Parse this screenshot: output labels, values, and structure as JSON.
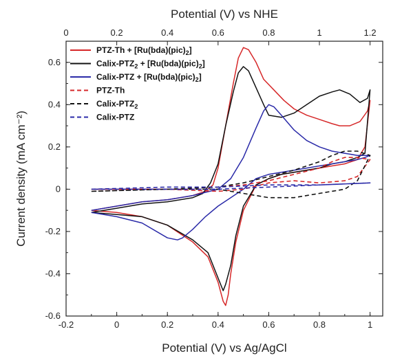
{
  "chart_data": {
    "type": "line",
    "title": "",
    "xlabel": "Potential (V) vs Ag/AgCl",
    "ylabel": "Current density (mA cm⁻²)",
    "x2label": "Potential (V) vs NHE",
    "xlim": [
      -0.2,
      1.05
    ],
    "ylim": [
      -0.6,
      0.7
    ],
    "x2lim": [
      0,
      1.25
    ],
    "xticks": [
      "-0.2",
      "0",
      "0.2",
      "0.4",
      "0.6",
      "0.8",
      "1"
    ],
    "x2ticks": [
      "0",
      "0.2",
      "0.4",
      "0.6",
      "0.8",
      "1",
      "1.2"
    ],
    "yticks": [
      "-0.6",
      "-0.4",
      "-0.2",
      "0",
      "0.2",
      "0.4",
      "0.6"
    ],
    "grid": false,
    "legend_position": "top-left",
    "series": [
      {
        "name": "PTZ-Th + [Ru(bda)(pic)2]",
        "legend": {
          "base": "PTZ-Th + [Ru(bda)(pic)",
          "sub": "2",
          "tail": "]"
        },
        "color": "#d62728",
        "dash": "solid",
        "x": [
          -0.1,
          0.0,
          0.1,
          0.2,
          0.3,
          0.35,
          0.38,
          0.4,
          0.43,
          0.46,
          0.48,
          0.5,
          0.52,
          0.55,
          0.58,
          0.62,
          0.66,
          0.7,
          0.75,
          0.8,
          0.85,
          0.88,
          0.92,
          0.96,
          0.99,
          1.0,
          0.98,
          0.95,
          0.9,
          0.85,
          0.8,
          0.75,
          0.7,
          0.65,
          0.6,
          0.55,
          0.5,
          0.47,
          0.45,
          0.44,
          0.43,
          0.42,
          0.4,
          0.36,
          0.3,
          0.2,
          0.1,
          0.0,
          -0.1
        ],
        "y": [
          -0.1,
          -0.08,
          -0.06,
          -0.05,
          -0.03,
          -0.01,
          0.02,
          0.1,
          0.3,
          0.5,
          0.62,
          0.67,
          0.66,
          0.6,
          0.52,
          0.47,
          0.42,
          0.38,
          0.35,
          0.33,
          0.31,
          0.3,
          0.3,
          0.32,
          0.37,
          0.42,
          0.2,
          0.14,
          0.12,
          0.11,
          0.1,
          0.09,
          0.08,
          0.07,
          0.05,
          0.02,
          -0.1,
          -0.25,
          -0.4,
          -0.5,
          -0.55,
          -0.53,
          -0.44,
          -0.32,
          -0.25,
          -0.17,
          -0.13,
          -0.11,
          -0.1
        ]
      },
      {
        "name": "Calix-PTZ2 + [Ru(bda)(pic)2]",
        "legend": {
          "base": "Calix-PTZ",
          "sub": "2",
          "mid": " + [Ru(bda)(pic)",
          "sub2": "2",
          "tail": "]"
        },
        "color": "#111111",
        "dash": "solid",
        "x": [
          -0.1,
          0.0,
          0.1,
          0.2,
          0.3,
          0.34,
          0.37,
          0.4,
          0.43,
          0.46,
          0.48,
          0.5,
          0.52,
          0.55,
          0.58,
          0.6,
          0.65,
          0.7,
          0.75,
          0.8,
          0.85,
          0.88,
          0.92,
          0.96,
          0.99,
          1.0,
          0.98,
          0.95,
          0.9,
          0.85,
          0.8,
          0.75,
          0.7,
          0.65,
          0.6,
          0.55,
          0.5,
          0.47,
          0.45,
          0.43,
          0.42,
          0.4,
          0.36,
          0.3,
          0.2,
          0.1,
          0.0,
          -0.1
        ],
        "y": [
          -0.11,
          -0.09,
          -0.07,
          -0.06,
          -0.04,
          -0.02,
          0.03,
          0.12,
          0.3,
          0.46,
          0.55,
          0.58,
          0.56,
          0.48,
          0.4,
          0.35,
          0.34,
          0.36,
          0.4,
          0.44,
          0.46,
          0.47,
          0.45,
          0.41,
          0.43,
          0.47,
          0.17,
          0.15,
          0.13,
          0.12,
          0.1,
          0.09,
          0.08,
          0.07,
          0.05,
          0.02,
          -0.08,
          -0.22,
          -0.36,
          -0.45,
          -0.48,
          -0.42,
          -0.3,
          -0.24,
          -0.17,
          -0.13,
          -0.12,
          -0.11
        ]
      },
      {
        "name": "Calix-PTZ + [Ru(bda)(pic)2]",
        "legend": {
          "base": "Calix-PTZ + [Ru(bda)(pic)",
          "sub": "2",
          "tail": "]"
        },
        "color": "#2a2aa8",
        "dash": "solid",
        "x": [
          -0.1,
          0.0,
          0.1,
          0.2,
          0.3,
          0.4,
          0.45,
          0.5,
          0.55,
          0.58,
          0.6,
          0.62,
          0.65,
          0.7,
          0.75,
          0.8,
          0.85,
          0.9,
          0.95,
          1.0,
          0.98,
          0.95,
          0.9,
          0.85,
          0.8,
          0.75,
          0.7,
          0.65,
          0.6,
          0.55,
          0.5,
          0.45,
          0.4,
          0.35,
          0.3,
          0.26,
          0.24,
          0.2,
          0.1,
          0.0,
          -0.1
        ],
        "y": [
          -0.1,
          -0.08,
          -0.06,
          -0.05,
          -0.03,
          0.0,
          0.05,
          0.15,
          0.29,
          0.37,
          0.4,
          0.39,
          0.35,
          0.28,
          0.23,
          0.2,
          0.18,
          0.17,
          0.16,
          0.16,
          0.15,
          0.14,
          0.13,
          0.12,
          0.11,
          0.1,
          0.09,
          0.08,
          0.07,
          0.05,
          0.0,
          -0.04,
          -0.08,
          -0.13,
          -0.19,
          -0.23,
          -0.24,
          -0.23,
          -0.16,
          -0.13,
          -0.11
        ]
      },
      {
        "name": "PTZ-Th",
        "legend": {
          "base": "PTZ-Th"
        },
        "color": "#d62728",
        "dash": "dashed",
        "x": [
          -0.1,
          0.2,
          0.4,
          0.5,
          0.6,
          0.7,
          0.8,
          0.85,
          0.9,
          0.95,
          1.0,
          0.95,
          0.9,
          0.8,
          0.7,
          0.6,
          0.5,
          0.4,
          0.2,
          -0.1
        ],
        "y": [
          0.0,
          0.0,
          0.01,
          0.02,
          0.04,
          0.07,
          0.1,
          0.13,
          0.15,
          0.15,
          0.14,
          0.06,
          0.04,
          0.03,
          0.04,
          0.03,
          0.0,
          -0.01,
          0.0,
          0.0
        ]
      },
      {
        "name": "Calix-PTZ2",
        "legend": {
          "base": "Calix-PTZ",
          "sub": "2"
        },
        "color": "#111111",
        "dash": "dashed",
        "x": [
          -0.1,
          0.2,
          0.4,
          0.5,
          0.6,
          0.7,
          0.8,
          0.85,
          0.9,
          0.95,
          1.0,
          0.95,
          0.9,
          0.8,
          0.7,
          0.6,
          0.5,
          0.4,
          0.2,
          -0.1
        ],
        "y": [
          -0.01,
          0.0,
          0.01,
          0.03,
          0.06,
          0.09,
          0.13,
          0.16,
          0.18,
          0.18,
          0.16,
          0.04,
          0.0,
          -0.02,
          -0.04,
          -0.04,
          -0.02,
          0.0,
          0.0,
          -0.01
        ]
      },
      {
        "name": "Calix-PTZ",
        "legend": {
          "base": "Calix-PTZ"
        },
        "color": "#2a2aa8",
        "dash": "dashed",
        "x": [
          -0.1,
          0.2,
          0.4,
          0.6,
          0.8,
          1.0,
          0.8,
          0.6,
          0.4,
          0.2,
          -0.1
        ],
        "y": [
          0.0,
          0.01,
          0.01,
          0.02,
          0.02,
          0.03,
          0.02,
          0.01,
          0.0,
          0.0,
          0.0
        ]
      }
    ]
  }
}
